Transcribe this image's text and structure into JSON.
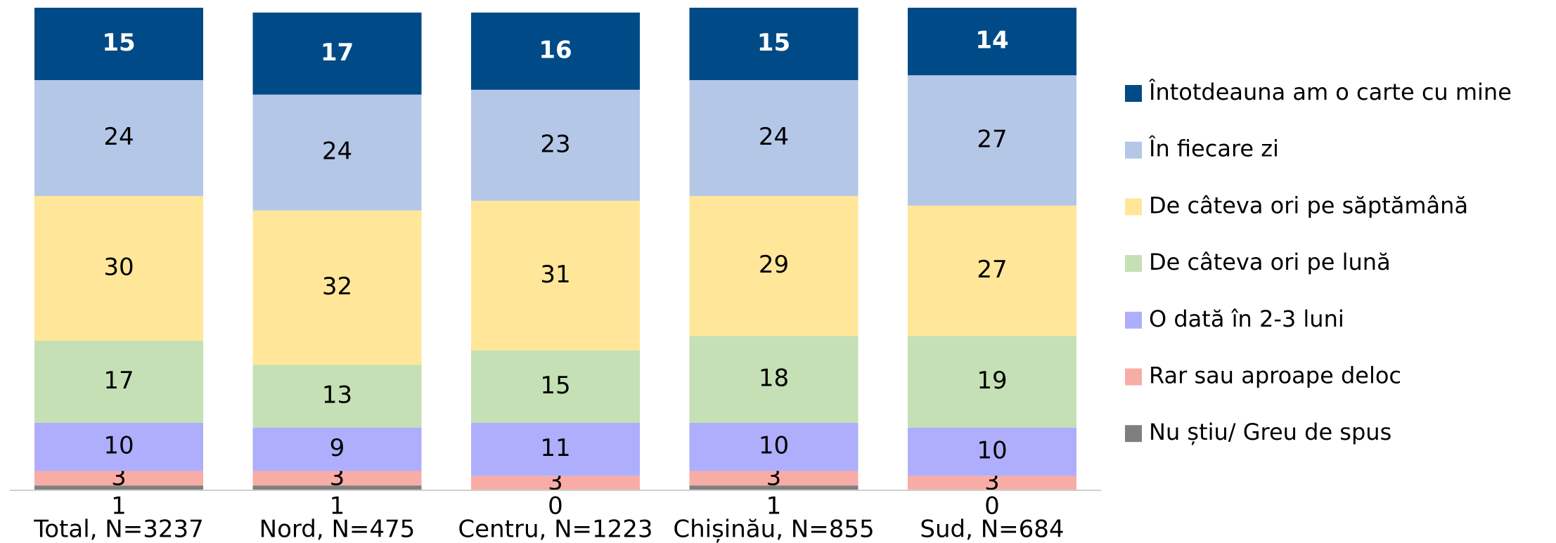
{
  "chart_data": {
    "type": "stacked_bar",
    "categories": [
      "Total, N=3237",
      "Nord, N=475",
      "Centru, N=1223",
      "Chișinău, N=855",
      "Sud, N=684"
    ],
    "series": [
      {
        "name": "Nu știu/ Greu de spus",
        "color": "#7f7f7f",
        "values": [
          1,
          1,
          0,
          1,
          0
        ]
      },
      {
        "name": "Rar sau aproape deloc",
        "color": "#f8aca6",
        "values": [
          3,
          3,
          3,
          3,
          3
        ]
      },
      {
        "name": "O dată în 2-3 luni",
        "color": "#aeaefc",
        "values": [
          10,
          9,
          11,
          10,
          10
        ]
      },
      {
        "name": "De câteva ori pe lună",
        "color": "#c5e0b4",
        "values": [
          17,
          13,
          15,
          18,
          19
        ]
      },
      {
        "name": "De câteva ori pe săptămână",
        "color": "#ffe699",
        "values": [
          30,
          32,
          31,
          29,
          27
        ]
      },
      {
        "name": "În fiecare zi",
        "color": "#b4c7e7",
        "values": [
          24,
          24,
          23,
          24,
          27
        ]
      },
      {
        "name": "Întotdeauna am o carte cu mine",
        "color": "#004b87",
        "values": [
          15,
          17,
          16,
          15,
          14
        ]
      }
    ],
    "ylim": [
      0,
      100
    ]
  }
}
